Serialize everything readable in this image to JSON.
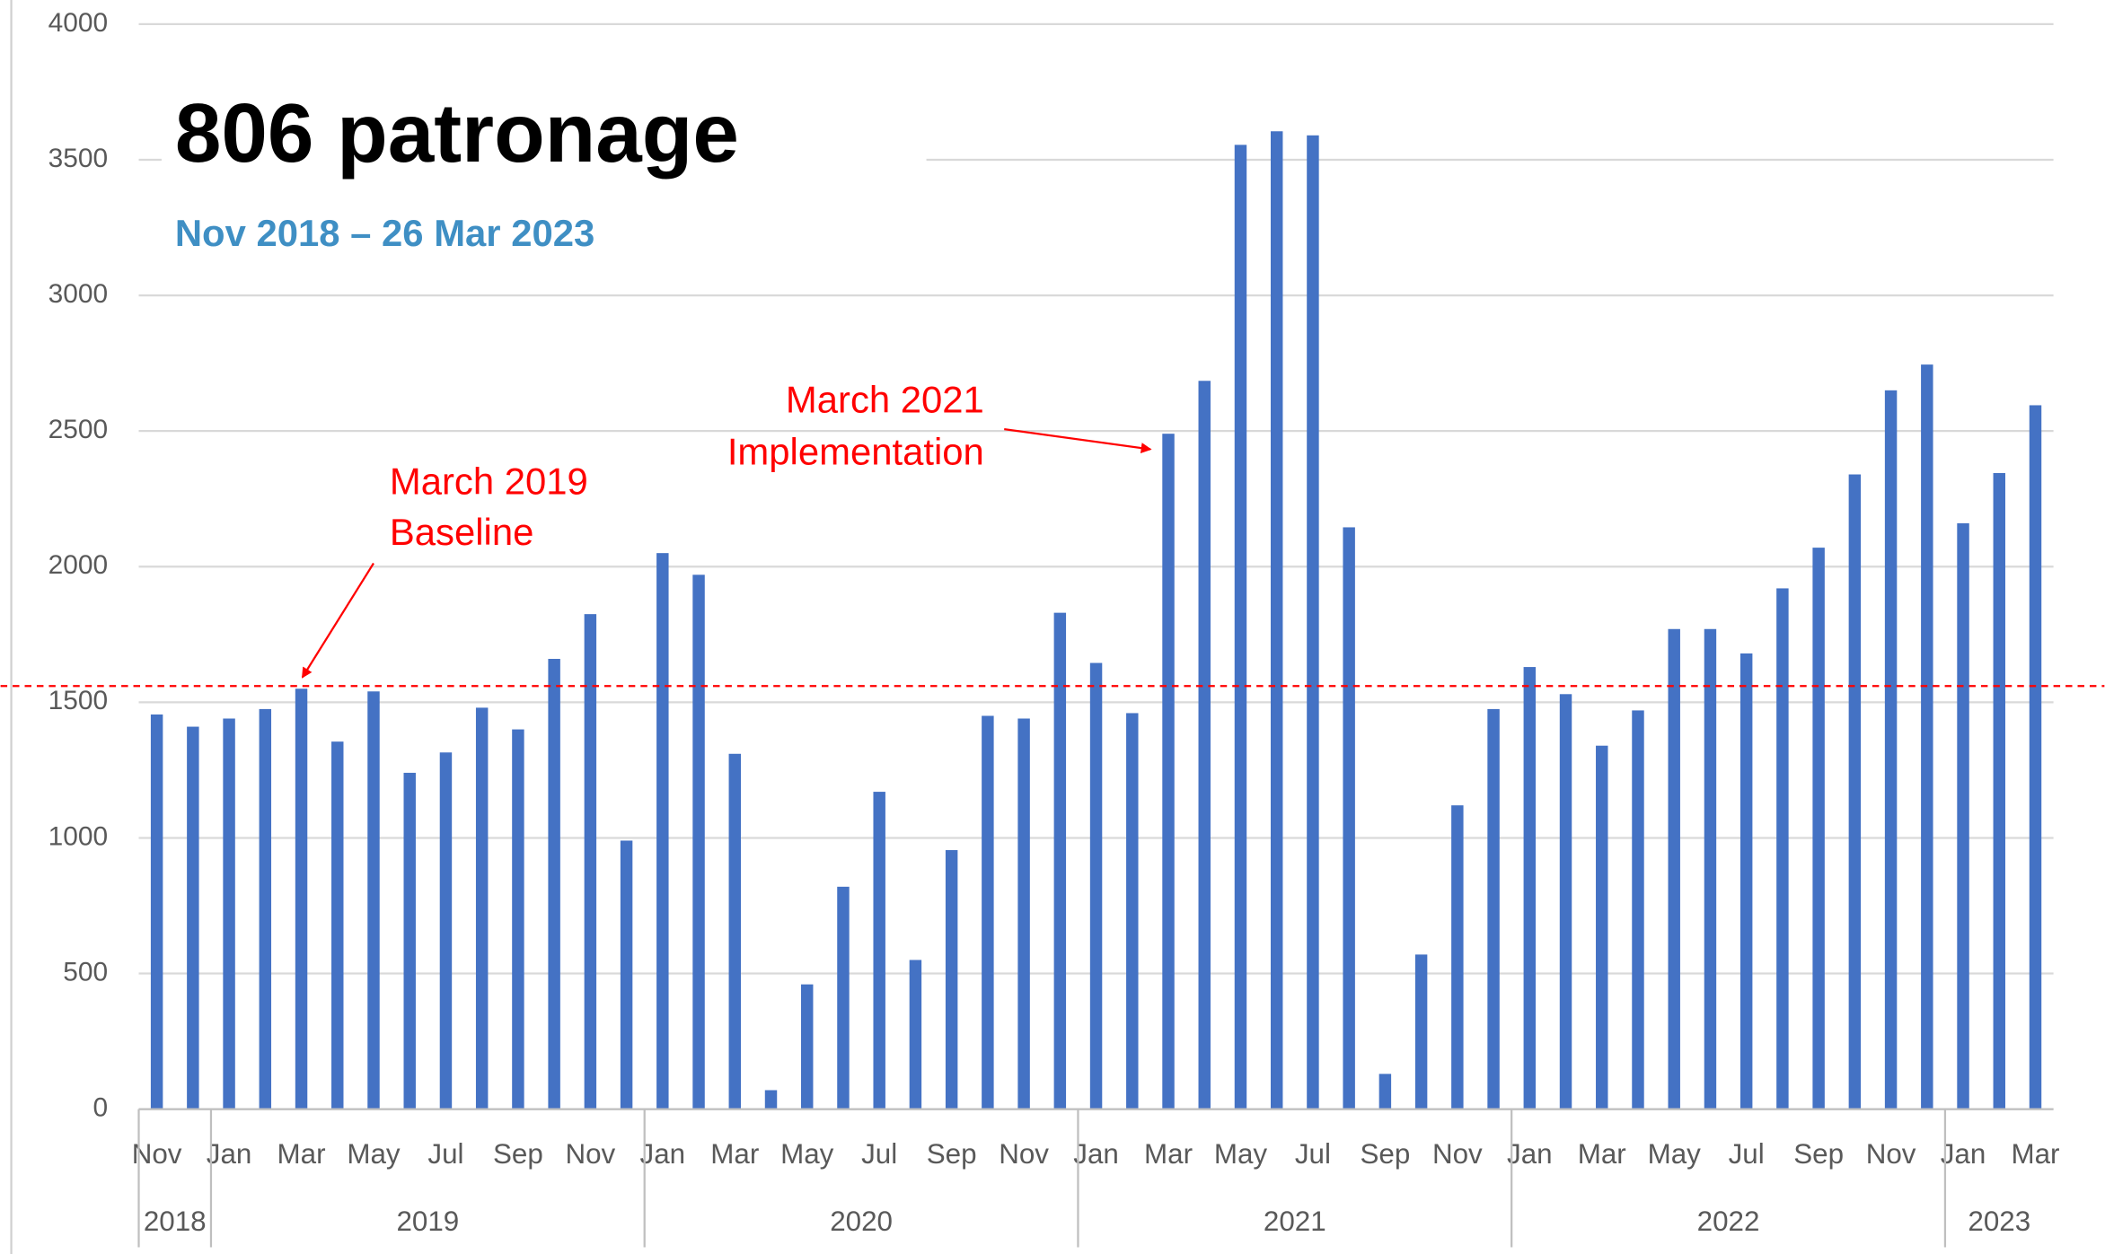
{
  "chart_data": {
    "type": "bar",
    "title": "806 patronage",
    "subtitle": "Nov 2018 – 26 Mar 2023",
    "categories": [
      "Nov",
      null,
      "Jan",
      null,
      "Mar",
      null,
      "May",
      null,
      "Jul",
      null,
      "Sep",
      null,
      "Nov",
      null,
      "Jan",
      null,
      "Mar",
      null,
      "May",
      null,
      "Jul",
      null,
      "Sep",
      null,
      "Nov",
      null,
      "Jan",
      null,
      "Mar",
      null,
      "May",
      null,
      "Jul",
      null,
      "Sep",
      null,
      "Nov",
      null,
      "Jan",
      null,
      "Mar",
      null,
      "May",
      null,
      "Jul",
      null,
      "Sep",
      null,
      "Nov",
      null,
      "Jan",
      null,
      "Mar"
    ],
    "year_groups": [
      {
        "label": "2018",
        "count": 2
      },
      {
        "label": "2019",
        "count": 12
      },
      {
        "label": "2020",
        "count": 12
      },
      {
        "label": "2021",
        "count": 12
      },
      {
        "label": "2022",
        "count": 12
      },
      {
        "label": "2023",
        "count": 3
      }
    ],
    "values": [
      1455,
      1410,
      1440,
      1475,
      1550,
      1355,
      1540,
      1240,
      1315,
      1480,
      1400,
      1660,
      1825,
      990,
      2050,
      1970,
      1310,
      70,
      460,
      820,
      1170,
      550,
      955,
      1450,
      1440,
      1830,
      1645,
      1460,
      2490,
      2685,
      3555,
      3605,
      3590,
      2145,
      130,
      570,
      1120,
      1475,
      1630,
      1530,
      1340,
      1470,
      1770,
      1770,
      1680,
      1920,
      2070,
      2340,
      2650,
      2745,
      2160,
      2345,
      2595
    ],
    "color": "#4472c4",
    "ylim": [
      0,
      4000
    ],
    "yticks": [
      0,
      500,
      1000,
      1500,
      2000,
      2500,
      3000,
      3500,
      4000
    ],
    "grid": true,
    "reference_line": {
      "value": 1560,
      "color": "#ff0000"
    },
    "annotations": [
      {
        "lines": [
          "March 2019",
          "Baseline"
        ]
      },
      {
        "lines": [
          "March 2021",
          "Implementation"
        ]
      }
    ]
  }
}
